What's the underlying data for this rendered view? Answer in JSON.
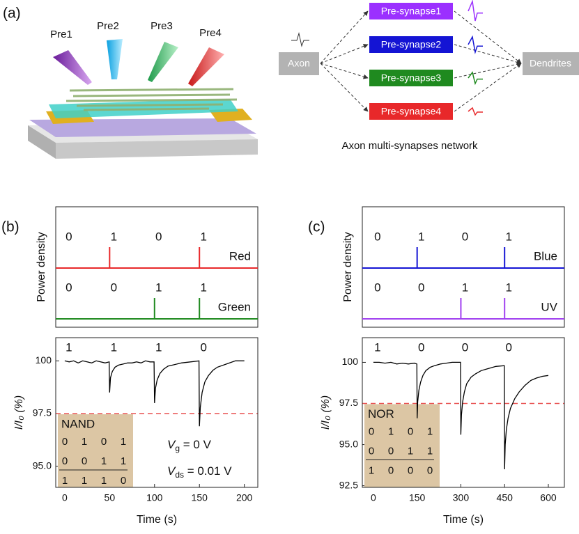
{
  "diagram": {
    "panel_label": "(a)",
    "light_labels": [
      "Pre1",
      "Pre2",
      "Pre3",
      "Pre4"
    ],
    "axon": "Axon",
    "dendrites": "Dendrites",
    "synapses": [
      {
        "label": "Pre-synapse1",
        "color": "#9b30ff"
      },
      {
        "label": "Pre-synapse2",
        "color": "#1414d4"
      },
      {
        "label": "Pre-synapse3",
        "color": "#1f8a1f"
      },
      {
        "label": "Pre-synapse4",
        "color": "#e8282a"
      }
    ],
    "caption": "Axon multi-synapses network"
  },
  "chart_data": [
    {
      "type": "pulse",
      "panel_label": "(b)",
      "ylabel": "Power density",
      "xlim": [
        -10,
        215
      ],
      "series": [
        {
          "name": "Red",
          "color": "#e8282a",
          "pulse_x": [
            50,
            150
          ],
          "bits": [
            0,
            1,
            0,
            1
          ]
        },
        {
          "name": "Green",
          "color": "#1f8a1f",
          "pulse_x": [
            100,
            150
          ],
          "bits": [
            0,
            0,
            1,
            1
          ]
        }
      ]
    },
    {
      "type": "line",
      "xlabel": "Time (s)",
      "ylabel": "I/I₀ (%)",
      "xlim": [
        -10,
        215
      ],
      "ylim": [
        94,
        101.1
      ],
      "xticks": [
        0,
        50,
        100,
        150,
        200
      ],
      "yticks": [
        {
          "value": 95,
          "label": "95.0"
        },
        97.5,
        100
      ],
      "threshold": 97.5,
      "threshold_color": "#e85050",
      "bits": [
        1,
        1,
        1,
        0
      ],
      "series": [
        {
          "color": "#000000",
          "x": [
            0,
            5,
            10,
            15,
            20,
            25,
            30,
            35,
            40,
            45,
            49.5,
            50,
            51,
            53,
            56,
            60,
            65,
            70,
            75,
            80,
            85,
            90,
            95,
            99.5,
            100,
            101,
            103,
            106,
            110,
            115,
            120,
            130,
            140,
            149.5,
            150,
            151,
            153,
            156,
            160,
            165,
            170,
            180,
            190,
            200
          ],
          "values": [
            100,
            99.95,
            100,
            99.9,
            100,
            99.95,
            99.9,
            100,
            99.95,
            99.9,
            99.95,
            98.5,
            99.2,
            99.5,
            99.7,
            99.8,
            99.85,
            99.9,
            99.9,
            99.95,
            99.9,
            100,
            99.95,
            99.95,
            98.0,
            98.7,
            99.1,
            99.4,
            99.6,
            99.75,
            99.8,
            99.9,
            99.95,
            100,
            96.9,
            97.8,
            98.5,
            99.0,
            99.3,
            99.55,
            99.7,
            99.85,
            100,
            100
          ]
        }
      ],
      "truth_table": {
        "title": "NAND",
        "rows": [
          [
            0,
            1,
            0,
            1
          ],
          [
            0,
            0,
            1,
            1
          ],
          [
            1,
            1,
            1,
            0
          ]
        ]
      },
      "annotations": [
        {
          "symbol": "V",
          "sub": "g",
          "text": " = 0 V"
        },
        {
          "symbol": "V",
          "sub": "ds",
          "text": " = 0.01 V"
        }
      ]
    },
    {
      "type": "pulse",
      "panel_label": "(c)",
      "ylabel": "Power density",
      "xlim": [
        -38,
        655
      ],
      "series": [
        {
          "name": "Blue",
          "color": "#1414d4",
          "pulse_x": [
            150,
            450
          ],
          "bits": [
            0,
            1,
            0,
            1
          ]
        },
        {
          "name": "UV",
          "color": "#a040f0",
          "pulse_x": [
            300,
            450
          ],
          "bits": [
            0,
            0,
            1,
            1
          ]
        }
      ]
    },
    {
      "type": "line",
      "xlabel": "Time (s)",
      "ylabel": "I/I₀ (%)",
      "xlim": [
        -38,
        655
      ],
      "ylim": [
        92.4,
        101.5
      ],
      "xticks": [
        0,
        150,
        300,
        450,
        600
      ],
      "yticks": [
        92.5,
        {
          "value": 95,
          "label": "95.0"
        },
        97.5,
        100
      ],
      "threshold": 97.5,
      "threshold_color": "#e85050",
      "bits": [
        1,
        0,
        0,
        0
      ],
      "series": [
        {
          "color": "#000000",
          "x": [
            0,
            20,
            40,
            60,
            80,
            100,
            120,
            140,
            149,
            150,
            152,
            156,
            162,
            170,
            180,
            195,
            210,
            230,
            250,
            270,
            299,
            300,
            302,
            306,
            312,
            320,
            335,
            350,
            370,
            390,
            420,
            449,
            450,
            452,
            456,
            462,
            470,
            485,
            500,
            520,
            540,
            560,
            580,
            600
          ],
          "values": [
            100,
            100,
            99.95,
            100,
            99.9,
            99.95,
            99.9,
            99.95,
            99.9,
            96.6,
            97.6,
            98.3,
            98.8,
            99.2,
            99.5,
            99.7,
            99.8,
            99.9,
            99.95,
            100,
            100,
            95.6,
            96.8,
            97.6,
            98.2,
            98.7,
            99.1,
            99.3,
            99.5,
            99.6,
            99.75,
            99.8,
            93.5,
            95.0,
            95.9,
            96.6,
            97.2,
            97.8,
            98.2,
            98.6,
            98.9,
            99.05,
            99.15,
            99.2
          ]
        }
      ],
      "truth_table": {
        "title": "NOR",
        "rows": [
          [
            0,
            1,
            0,
            1
          ],
          [
            0,
            0,
            1,
            1
          ],
          [
            1,
            0,
            0,
            0
          ]
        ]
      },
      "annotations": []
    }
  ]
}
